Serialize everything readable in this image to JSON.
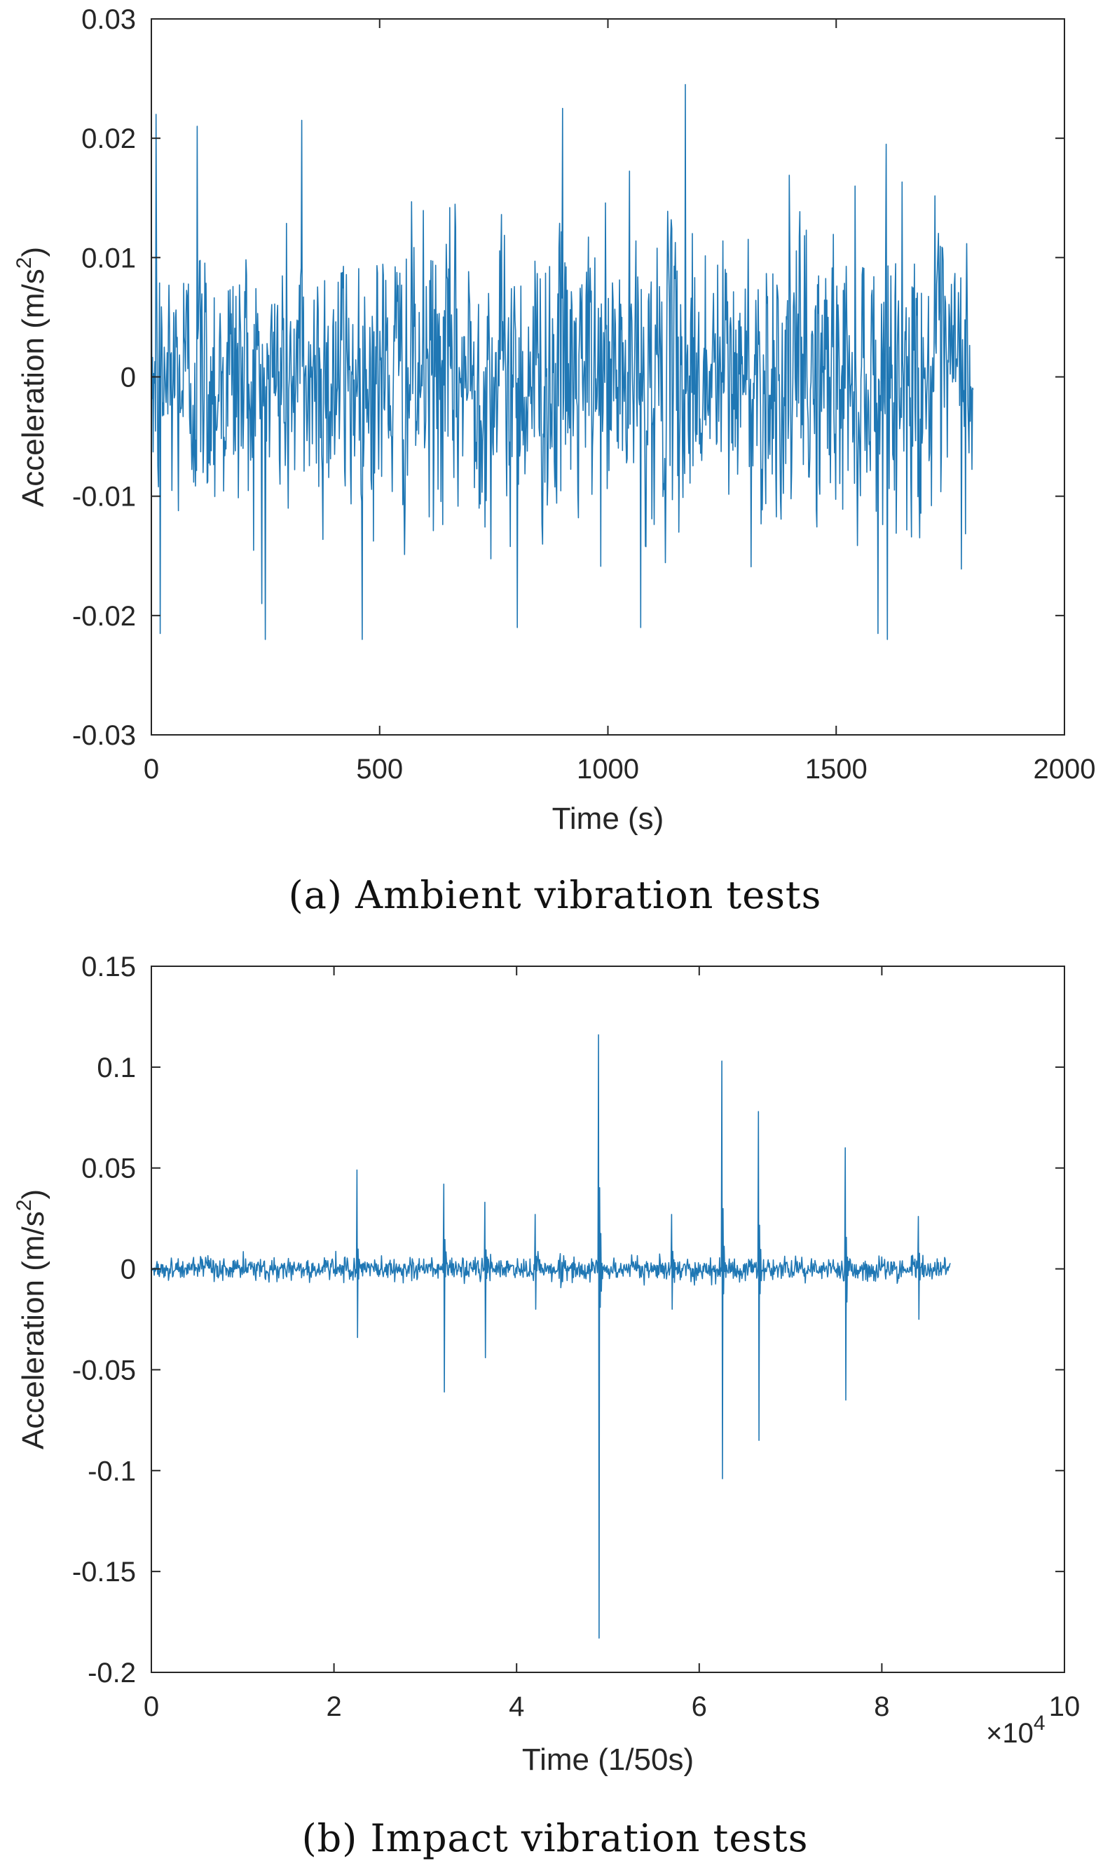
{
  "chart_data": [
    {
      "type": "line",
      "panel": "a",
      "caption": "(a) Ambient vibration tests",
      "xlabel": "Time (s)",
      "ylabel_main": "Acceleration (m/s",
      "ylabel_sup": "2",
      "ylabel_close": ")",
      "xlim": [
        0,
        2000
      ],
      "ylim": [
        -0.03,
        0.03
      ],
      "xticks": [
        0,
        500,
        1000,
        1500,
        2000
      ],
      "xtick_labels": [
        "0",
        "500",
        "1000",
        "1500",
        "2000"
      ],
      "yticks": [
        -0.03,
        -0.02,
        -0.01,
        0,
        0.01,
        0.02,
        0.03
      ],
      "ytick_labels": [
        "-0.03",
        "-0.02",
        "-0.01",
        "0",
        "0.01",
        "0.02",
        "0.03"
      ],
      "x_exponent": null,
      "line_color": "#1f77b4",
      "signal": {
        "kind": "ambient",
        "x_start": 0,
        "x_end": 1800,
        "samples": 1400,
        "noise_std": 0.0068,
        "clip": 0.022
      },
      "peaks": [
        {
          "x": 10,
          "y": 0.022
        },
        {
          "x": 18,
          "y": -0.0215
        },
        {
          "x": 100,
          "y": 0.021
        },
        {
          "x": 240,
          "y": -0.019
        },
        {
          "x": 330,
          "y": 0.0215
        },
        {
          "x": 800,
          "y": -0.021
        },
        {
          "x": 900,
          "y": 0.0225
        },
        {
          "x": 1070,
          "y": -0.021
        },
        {
          "x": 1170,
          "y": 0.0245
        },
        {
          "x": 1590,
          "y": -0.0215
        },
        {
          "x": 1610,
          "y": 0.0195
        }
      ]
    },
    {
      "type": "line",
      "panel": "b",
      "caption": "(b) Impact vibration tests",
      "xlabel": "Time (1/50s)",
      "ylabel_main": "Acceleration (m/s",
      "ylabel_sup": "2",
      "ylabel_close": ")",
      "xlim": [
        0,
        100000
      ],
      "ylim": [
        -0.2,
        0.15
      ],
      "xticks": [
        0,
        20000,
        40000,
        60000,
        80000,
        100000
      ],
      "xtick_labels": [
        "0",
        "2",
        "4",
        "6",
        "8",
        "10"
      ],
      "yticks": [
        -0.2,
        -0.15,
        -0.1,
        -0.05,
        0,
        0.05,
        0.1,
        0.15
      ],
      "ytick_labels": [
        "-0.2",
        "-0.15",
        "-0.1",
        "-0.05",
        "0",
        "0.05",
        "0.1",
        "0.15"
      ],
      "x_exponent": {
        "base": "×10",
        "power": "4"
      },
      "line_color": "#1f77b4",
      "signal": {
        "kind": "impact",
        "x_start": 0,
        "x_end": 87500,
        "samples": 1400,
        "noise_std": 0.0035,
        "clip": 0.012
      },
      "peaks": [
        {
          "x": 22500,
          "y": 0.049
        },
        {
          "x": 22500,
          "y": -0.034
        },
        {
          "x": 32000,
          "y": 0.042
        },
        {
          "x": 32000,
          "y": -0.061
        },
        {
          "x": 36500,
          "y": 0.033
        },
        {
          "x": 36500,
          "y": -0.044
        },
        {
          "x": 42000,
          "y": 0.027
        },
        {
          "x": 42000,
          "y": -0.02
        },
        {
          "x": 49000,
          "y": 0.116
        },
        {
          "x": 49000,
          "y": -0.183
        },
        {
          "x": 57000,
          "y": 0.027
        },
        {
          "x": 57000,
          "y": -0.02
        },
        {
          "x": 62500,
          "y": 0.103
        },
        {
          "x": 62500,
          "y": -0.104
        },
        {
          "x": 66500,
          "y": 0.078
        },
        {
          "x": 66500,
          "y": -0.085
        },
        {
          "x": 76000,
          "y": 0.06
        },
        {
          "x": 76000,
          "y": -0.065
        },
        {
          "x": 84000,
          "y": 0.026
        },
        {
          "x": 84000,
          "y": -0.025
        }
      ]
    }
  ]
}
